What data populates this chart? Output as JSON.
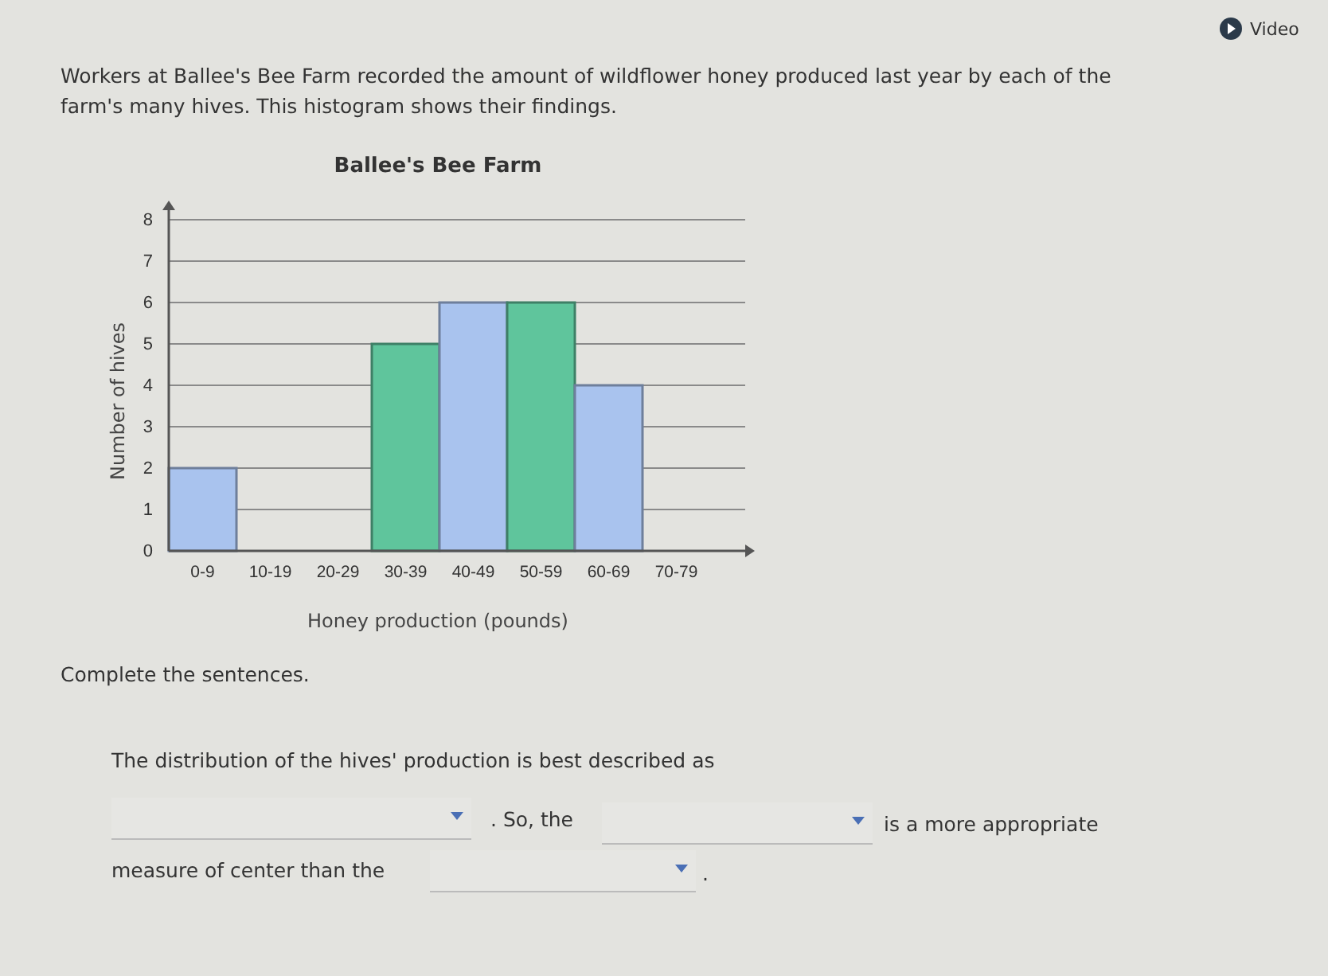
{
  "chart_data": {
    "type": "bar",
    "title": "Ballee's Bee Farm",
    "xlabel": "Honey production (pounds)",
    "ylabel": "Number of hives",
    "categories": [
      "0-9",
      "10-19",
      "20-29",
      "30-39",
      "40-49",
      "50-59",
      "60-69",
      "70-79"
    ],
    "values": [
      2,
      0,
      0,
      5,
      6,
      6,
      4,
      0
    ],
    "colors": [
      "#a9c3ee",
      "#a9c3ee",
      "#5fc59c",
      "#5fc59c",
      "#a9c3ee",
      "#5fc59c",
      "#a9c3ee",
      "#5fc59c"
    ],
    "ylim": [
      0,
      8
    ],
    "yticks": [
      0,
      1,
      2,
      3,
      4,
      5,
      6,
      7,
      8
    ],
    "grid": "y",
    "annotations": [
      "Video",
      "Workers at Ballee's Bee Farm recorded the amount of wildflower honey produced last year by each of the farm's many hives. This histogram shows their findings.",
      "Complete the sentences.",
      "The distribution of the hives' production is best described as",
      ". So, the",
      "is a more appropriate",
      "measure of center than the",
      "."
    ]
  }
}
